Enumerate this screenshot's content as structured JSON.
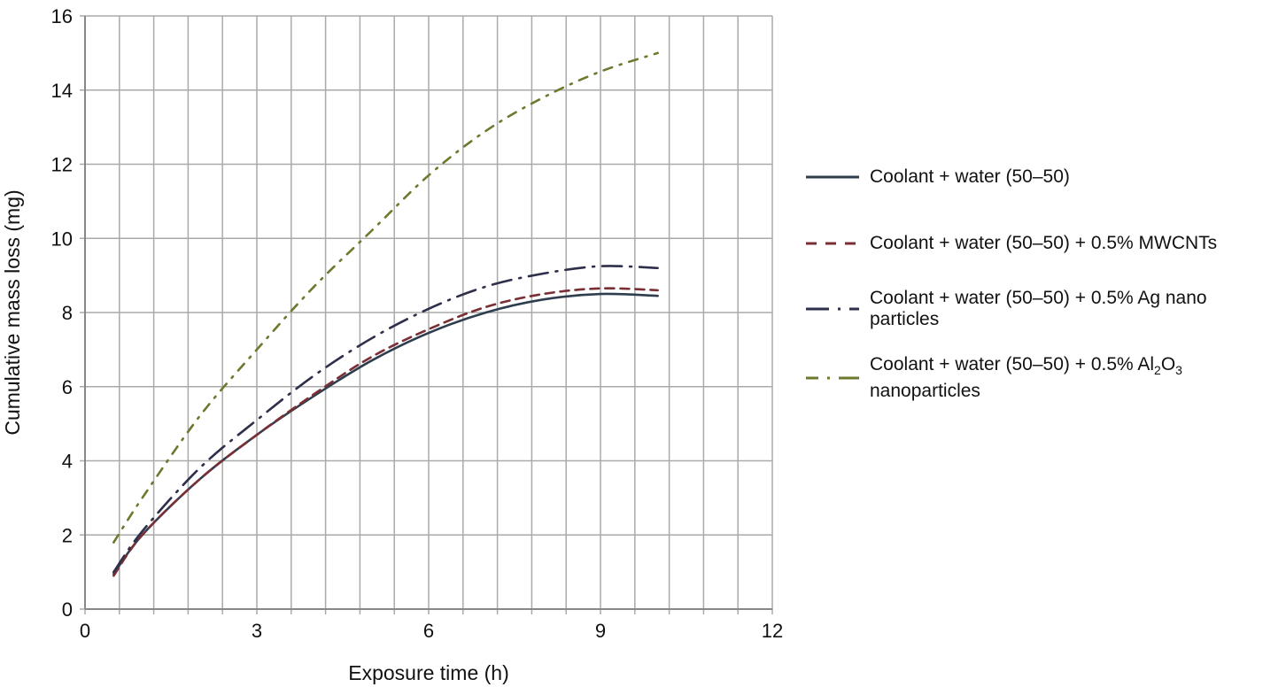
{
  "chart_data": {
    "type": "line",
    "title": "",
    "xlabel": "Exposure time (h)",
    "ylabel": "Cumulative mass loss (mg)",
    "xlim": [
      0,
      12
    ],
    "ylim": [
      0,
      16
    ],
    "x_ticks": [
      0,
      3,
      6,
      9,
      12
    ],
    "y_ticks": [
      0,
      2,
      4,
      6,
      8,
      10,
      12,
      14,
      16
    ],
    "grid": true,
    "grid_x_step": 0.6,
    "grid_y_step": 2,
    "legend_position": "right",
    "x": [
      0.5,
      1,
      2,
      3,
      4,
      5,
      6,
      7,
      8,
      9,
      10
    ],
    "series": [
      {
        "name": "Coolant + water (50–50)",
        "style": "solid",
        "color": "#2f3e4e",
        "values": [
          0.95,
          2.0,
          3.5,
          4.7,
          5.75,
          6.7,
          7.45,
          8.0,
          8.35,
          8.5,
          8.45
        ]
      },
      {
        "name": "Coolant + water (50–50) + 0.5% MWCNTs",
        "style": "dashed",
        "color": "#7a2f35",
        "values": [
          0.9,
          2.0,
          3.5,
          4.7,
          5.8,
          6.8,
          7.55,
          8.15,
          8.5,
          8.65,
          8.6
        ]
      },
      {
        "name": "Coolant + water (50–50) + 0.5% Ag nano particles",
        "style": "dash-dot",
        "color": "#2e2f4a",
        "values": [
          1.0,
          2.1,
          3.8,
          5.1,
          6.3,
          7.3,
          8.1,
          8.7,
          9.05,
          9.25,
          9.2
        ]
      },
      {
        "name": "Coolant + water (50–50) + 0.5% Al2O3 nanoparticles",
        "style": "dash-dot",
        "color": "#6b7a2e",
        "values": [
          1.8,
          3.0,
          5.2,
          7.0,
          8.7,
          10.2,
          11.7,
          12.9,
          13.8,
          14.5,
          15.0
        ]
      }
    ]
  },
  "legend": {
    "items": [
      {
        "label": "Coolant + water (50–50)"
      },
      {
        "label": "Coolant + water (50–50) + 0.5% MWCNTs"
      },
      {
        "label_line1": "Coolant + water (50–50) + 0.5% Ag nano",
        "label_line2": "particles"
      },
      {
        "label_line1_prefix": "Coolant + water (50–50) + 0.5% Al",
        "sub1": "2",
        "mid": "O",
        "sub2": "3",
        "label_line2": "nanoparticles"
      }
    ]
  }
}
